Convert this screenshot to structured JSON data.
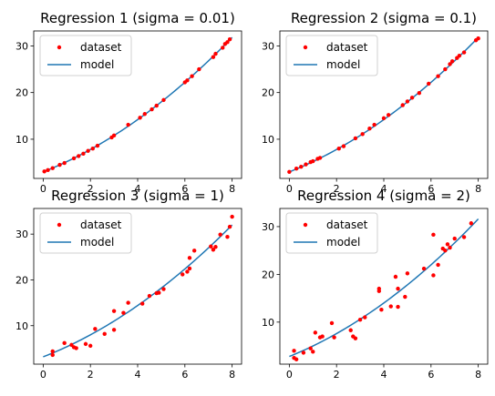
{
  "colors": {
    "model": "#1f77b4",
    "dataset": "#ff0000"
  },
  "chart_data": [
    {
      "type": "scatter",
      "title": "Regression 1 (sigma = 0.01)",
      "xlim": [
        -0.4,
        8.4
      ],
      "ylim": [
        1.6,
        33.2
      ],
      "xticks": [
        "0",
        "2",
        "4",
        "6",
        "8"
      ],
      "yticks": [
        "10",
        "20",
        "30"
      ],
      "legend": {
        "placement": "top-left",
        "dataset_label": "dataset",
        "model_label": "model"
      },
      "model": {
        "a": 0.2,
        "b": 2.0,
        "c": 3.0,
        "x_range": [
          0,
          8
        ]
      },
      "points": [
        [
          0.05,
          3.1
        ],
        [
          0.2,
          3.4
        ],
        [
          0.4,
          3.8
        ],
        [
          0.7,
          4.5
        ],
        [
          0.9,
          4.9
        ],
        [
          1.3,
          5.9
        ],
        [
          1.5,
          6.4
        ],
        [
          1.7,
          6.9
        ],
        [
          1.9,
          7.5
        ],
        [
          2.1,
          8.0
        ],
        [
          2.3,
          8.6
        ],
        [
          2.9,
          10.4
        ],
        [
          3.0,
          10.8
        ],
        [
          3.6,
          13.1
        ],
        [
          4.1,
          14.6
        ],
        [
          4.3,
          15.4
        ],
        [
          4.6,
          16.4
        ],
        [
          4.8,
          17.2
        ],
        [
          5.1,
          18.4
        ],
        [
          6.0,
          22.2
        ],
        [
          6.1,
          22.6
        ],
        [
          6.3,
          23.5
        ],
        [
          6.6,
          25.0
        ],
        [
          7.2,
          27.6
        ],
        [
          7.3,
          28.3
        ],
        [
          7.6,
          29.6
        ],
        [
          7.7,
          30.4
        ],
        [
          7.8,
          30.8
        ],
        [
          7.9,
          31.4
        ]
      ]
    },
    {
      "type": "scatter",
      "title": "Regression 2 (sigma = 0.1)",
      "xlim": [
        -0.4,
        8.4
      ],
      "ylim": [
        1.6,
        33.2
      ],
      "xticks": [
        "0",
        "2",
        "4",
        "6",
        "8"
      ],
      "yticks": [
        "10",
        "20",
        "30"
      ],
      "legend": {
        "placement": "top-left",
        "dataset_label": "dataset",
        "model_label": "model"
      },
      "model": {
        "a": 0.2,
        "b": 2.0,
        "c": 3.0,
        "x_range": [
          0,
          8
        ]
      },
      "points": [
        [
          0.0,
          3.0
        ],
        [
          0.3,
          3.7
        ],
        [
          0.5,
          4.1
        ],
        [
          0.7,
          4.6
        ],
        [
          0.9,
          5.1
        ],
        [
          1.0,
          5.3
        ],
        [
          1.2,
          5.8
        ],
        [
          1.3,
          6.0
        ],
        [
          2.1,
          8.0
        ],
        [
          2.3,
          8.5
        ],
        [
          2.8,
          10.2
        ],
        [
          3.1,
          11.1
        ],
        [
          3.4,
          12.3
        ],
        [
          3.6,
          13.1
        ],
        [
          4.0,
          14.5
        ],
        [
          4.2,
          15.2
        ],
        [
          4.8,
          17.3
        ],
        [
          5.0,
          18.1
        ],
        [
          5.2,
          18.9
        ],
        [
          5.5,
          19.9
        ],
        [
          5.9,
          21.9
        ],
        [
          6.3,
          23.5
        ],
        [
          6.6,
          25.0
        ],
        [
          6.8,
          26.1
        ],
        [
          6.9,
          26.7
        ],
        [
          7.1,
          27.4
        ],
        [
          7.2,
          27.9
        ],
        [
          7.4,
          28.6
        ],
        [
          7.9,
          31.2
        ],
        [
          8.0,
          31.6
        ]
      ]
    },
    {
      "type": "scatter",
      "title": "Regression 3 (sigma = 1)",
      "xlim": [
        -0.4,
        8.4
      ],
      "ylim": [
        1.6,
        35.6
      ],
      "xticks": [
        "0",
        "2",
        "4",
        "6",
        "8"
      ],
      "yticks": [
        "10",
        "20",
        "30"
      ],
      "legend": {
        "placement": "top-left",
        "dataset_label": "dataset",
        "model_label": "model"
      },
      "model": {
        "a": 0.2,
        "b": 2.0,
        "c": 3.2,
        "x_range": [
          0,
          8
        ]
      },
      "points": [
        [
          0.4,
          3.6
        ],
        [
          0.4,
          4.4
        ],
        [
          0.9,
          6.2
        ],
        [
          1.2,
          5.8
        ],
        [
          1.3,
          5.3
        ],
        [
          1.4,
          5.1
        ],
        [
          1.8,
          6.0
        ],
        [
          2.0,
          5.6
        ],
        [
          2.2,
          9.3
        ],
        [
          2.6,
          8.2
        ],
        [
          3.0,
          13.2
        ],
        [
          3.0,
          9.1
        ],
        [
          3.4,
          12.8
        ],
        [
          3.6,
          15.0
        ],
        [
          4.2,
          14.8
        ],
        [
          4.5,
          16.5
        ],
        [
          4.8,
          17.1
        ],
        [
          4.9,
          17.2
        ],
        [
          5.1,
          18.0
        ],
        [
          5.9,
          21.2
        ],
        [
          6.1,
          21.8
        ],
        [
          6.2,
          22.5
        ],
        [
          6.2,
          24.8
        ],
        [
          6.4,
          26.4
        ],
        [
          7.1,
          27.3
        ],
        [
          7.2,
          26.6
        ],
        [
          7.3,
          27.2
        ],
        [
          7.5,
          29.9
        ],
        [
          7.8,
          29.4
        ],
        [
          7.9,
          31.6
        ],
        [
          8.0,
          33.8
        ]
      ]
    },
    {
      "type": "scatter",
      "title": "Regression 4 (sigma = 2)",
      "xlim": [
        -0.4,
        8.4
      ],
      "ylim": [
        1.2,
        33.8
      ],
      "xticks": [
        "0",
        "2",
        "4",
        "6",
        "8"
      ],
      "yticks": [
        "10",
        "20",
        "30"
      ],
      "legend": {
        "placement": "top-left",
        "dataset_label": "dataset",
        "model_label": "model"
      },
      "model": {
        "a": 0.2,
        "b": 2.0,
        "c": 2.8,
        "x_range": [
          0,
          8
        ]
      },
      "points": [
        [
          0.2,
          2.5
        ],
        [
          0.3,
          2.2
        ],
        [
          0.2,
          4.0
        ],
        [
          0.6,
          3.6
        ],
        [
          0.9,
          4.5
        ],
        [
          1.0,
          3.8
        ],
        [
          1.1,
          7.8
        ],
        [
          1.3,
          6.8
        ],
        [
          1.4,
          7.0
        ],
        [
          1.8,
          9.8
        ],
        [
          1.9,
          6.8
        ],
        [
          2.6,
          8.3
        ],
        [
          2.7,
          7.0
        ],
        [
          2.8,
          6.6
        ],
        [
          3.0,
          10.5
        ],
        [
          3.2,
          11.0
        ],
        [
          3.8,
          16.5
        ],
        [
          3.8,
          17.0
        ],
        [
          3.9,
          12.6
        ],
        [
          4.3,
          13.3
        ],
        [
          4.5,
          19.5
        ],
        [
          4.6,
          13.2
        ],
        [
          4.6,
          17.0
        ],
        [
          4.9,
          15.3
        ],
        [
          5.0,
          20.2
        ],
        [
          5.7,
          21.2
        ],
        [
          6.1,
          19.8
        ],
        [
          6.1,
          28.3
        ],
        [
          6.3,
          22.0
        ],
        [
          6.5,
          25.4
        ],
        [
          6.6,
          25.0
        ],
        [
          6.7,
          26.3
        ],
        [
          6.8,
          25.6
        ],
        [
          7.0,
          27.5
        ],
        [
          7.4,
          27.8
        ],
        [
          7.7,
          30.7
        ]
      ]
    }
  ]
}
